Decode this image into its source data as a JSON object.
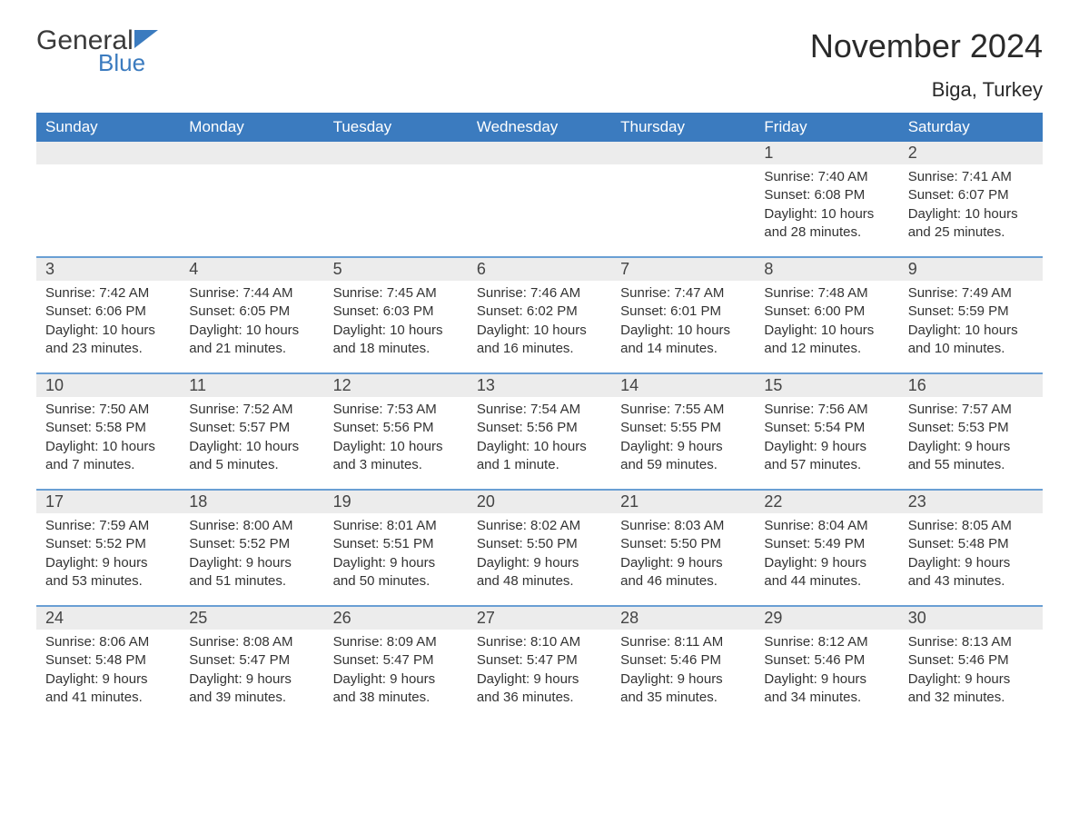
{
  "logo": {
    "general": "General",
    "blue": "Blue"
  },
  "title": "November 2024",
  "location": "Biga, Turkey",
  "colors": {
    "header_bg": "#3b7bbf",
    "header_text": "#ffffff",
    "row_border": "#6a9fd4",
    "day_band_bg": "#ececec",
    "body_text": "#333333",
    "logo_blue": "#3b7bbf",
    "logo_dark": "#3a3a3a",
    "page_bg": "#ffffff"
  },
  "weekdays": [
    "Sunday",
    "Monday",
    "Tuesday",
    "Wednesday",
    "Thursday",
    "Friday",
    "Saturday"
  ],
  "weeks": [
    [
      {
        "day": "",
        "sunrise": "",
        "sunset": "",
        "daylight": ""
      },
      {
        "day": "",
        "sunrise": "",
        "sunset": "",
        "daylight": ""
      },
      {
        "day": "",
        "sunrise": "",
        "sunset": "",
        "daylight": ""
      },
      {
        "day": "",
        "sunrise": "",
        "sunset": "",
        "daylight": ""
      },
      {
        "day": "",
        "sunrise": "",
        "sunset": "",
        "daylight": ""
      },
      {
        "day": "1",
        "sunrise": "Sunrise: 7:40 AM",
        "sunset": "Sunset: 6:08 PM",
        "daylight": "Daylight: 10 hours and 28 minutes."
      },
      {
        "day": "2",
        "sunrise": "Sunrise: 7:41 AM",
        "sunset": "Sunset: 6:07 PM",
        "daylight": "Daylight: 10 hours and 25 minutes."
      }
    ],
    [
      {
        "day": "3",
        "sunrise": "Sunrise: 7:42 AM",
        "sunset": "Sunset: 6:06 PM",
        "daylight": "Daylight: 10 hours and 23 minutes."
      },
      {
        "day": "4",
        "sunrise": "Sunrise: 7:44 AM",
        "sunset": "Sunset: 6:05 PM",
        "daylight": "Daylight: 10 hours and 21 minutes."
      },
      {
        "day": "5",
        "sunrise": "Sunrise: 7:45 AM",
        "sunset": "Sunset: 6:03 PM",
        "daylight": "Daylight: 10 hours and 18 minutes."
      },
      {
        "day": "6",
        "sunrise": "Sunrise: 7:46 AM",
        "sunset": "Sunset: 6:02 PM",
        "daylight": "Daylight: 10 hours and 16 minutes."
      },
      {
        "day": "7",
        "sunrise": "Sunrise: 7:47 AM",
        "sunset": "Sunset: 6:01 PM",
        "daylight": "Daylight: 10 hours and 14 minutes."
      },
      {
        "day": "8",
        "sunrise": "Sunrise: 7:48 AM",
        "sunset": "Sunset: 6:00 PM",
        "daylight": "Daylight: 10 hours and 12 minutes."
      },
      {
        "day": "9",
        "sunrise": "Sunrise: 7:49 AM",
        "sunset": "Sunset: 5:59 PM",
        "daylight": "Daylight: 10 hours and 10 minutes."
      }
    ],
    [
      {
        "day": "10",
        "sunrise": "Sunrise: 7:50 AM",
        "sunset": "Sunset: 5:58 PM",
        "daylight": "Daylight: 10 hours and 7 minutes."
      },
      {
        "day": "11",
        "sunrise": "Sunrise: 7:52 AM",
        "sunset": "Sunset: 5:57 PM",
        "daylight": "Daylight: 10 hours and 5 minutes."
      },
      {
        "day": "12",
        "sunrise": "Sunrise: 7:53 AM",
        "sunset": "Sunset: 5:56 PM",
        "daylight": "Daylight: 10 hours and 3 minutes."
      },
      {
        "day": "13",
        "sunrise": "Sunrise: 7:54 AM",
        "sunset": "Sunset: 5:56 PM",
        "daylight": "Daylight: 10 hours and 1 minute."
      },
      {
        "day": "14",
        "sunrise": "Sunrise: 7:55 AM",
        "sunset": "Sunset: 5:55 PM",
        "daylight": "Daylight: 9 hours and 59 minutes."
      },
      {
        "day": "15",
        "sunrise": "Sunrise: 7:56 AM",
        "sunset": "Sunset: 5:54 PM",
        "daylight": "Daylight: 9 hours and 57 minutes."
      },
      {
        "day": "16",
        "sunrise": "Sunrise: 7:57 AM",
        "sunset": "Sunset: 5:53 PM",
        "daylight": "Daylight: 9 hours and 55 minutes."
      }
    ],
    [
      {
        "day": "17",
        "sunrise": "Sunrise: 7:59 AM",
        "sunset": "Sunset: 5:52 PM",
        "daylight": "Daylight: 9 hours and 53 minutes."
      },
      {
        "day": "18",
        "sunrise": "Sunrise: 8:00 AM",
        "sunset": "Sunset: 5:52 PM",
        "daylight": "Daylight: 9 hours and 51 minutes."
      },
      {
        "day": "19",
        "sunrise": "Sunrise: 8:01 AM",
        "sunset": "Sunset: 5:51 PM",
        "daylight": "Daylight: 9 hours and 50 minutes."
      },
      {
        "day": "20",
        "sunrise": "Sunrise: 8:02 AM",
        "sunset": "Sunset: 5:50 PM",
        "daylight": "Daylight: 9 hours and 48 minutes."
      },
      {
        "day": "21",
        "sunrise": "Sunrise: 8:03 AM",
        "sunset": "Sunset: 5:50 PM",
        "daylight": "Daylight: 9 hours and 46 minutes."
      },
      {
        "day": "22",
        "sunrise": "Sunrise: 8:04 AM",
        "sunset": "Sunset: 5:49 PM",
        "daylight": "Daylight: 9 hours and 44 minutes."
      },
      {
        "day": "23",
        "sunrise": "Sunrise: 8:05 AM",
        "sunset": "Sunset: 5:48 PM",
        "daylight": "Daylight: 9 hours and 43 minutes."
      }
    ],
    [
      {
        "day": "24",
        "sunrise": "Sunrise: 8:06 AM",
        "sunset": "Sunset: 5:48 PM",
        "daylight": "Daylight: 9 hours and 41 minutes."
      },
      {
        "day": "25",
        "sunrise": "Sunrise: 8:08 AM",
        "sunset": "Sunset: 5:47 PM",
        "daylight": "Daylight: 9 hours and 39 minutes."
      },
      {
        "day": "26",
        "sunrise": "Sunrise: 8:09 AM",
        "sunset": "Sunset: 5:47 PM",
        "daylight": "Daylight: 9 hours and 38 minutes."
      },
      {
        "day": "27",
        "sunrise": "Sunrise: 8:10 AM",
        "sunset": "Sunset: 5:47 PM",
        "daylight": "Daylight: 9 hours and 36 minutes."
      },
      {
        "day": "28",
        "sunrise": "Sunrise: 8:11 AM",
        "sunset": "Sunset: 5:46 PM",
        "daylight": "Daylight: 9 hours and 35 minutes."
      },
      {
        "day": "29",
        "sunrise": "Sunrise: 8:12 AM",
        "sunset": "Sunset: 5:46 PM",
        "daylight": "Daylight: 9 hours and 34 minutes."
      },
      {
        "day": "30",
        "sunrise": "Sunrise: 8:13 AM",
        "sunset": "Sunset: 5:46 PM",
        "daylight": "Daylight: 9 hours and 32 minutes."
      }
    ]
  ]
}
